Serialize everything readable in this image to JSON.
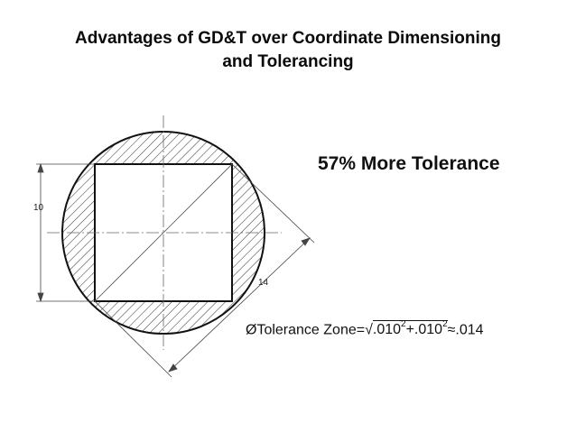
{
  "title": {
    "line1": "Advantages of GD&T over Coordinate Dimensioning",
    "line2": "and Tolerancing"
  },
  "callout": "57% More Tolerance",
  "dimensions": {
    "vertical": "10",
    "diagonal": "14"
  },
  "formula": {
    "diameter_symbol": "Ø",
    "label": "Tolerance Zone",
    "equals": "=",
    "radical": "√",
    "term1": ".010",
    "exp1": "2",
    "plus": "+",
    "term2": ".010",
    "exp2": "2",
    "approx": "≈",
    "result": ".014"
  }
}
